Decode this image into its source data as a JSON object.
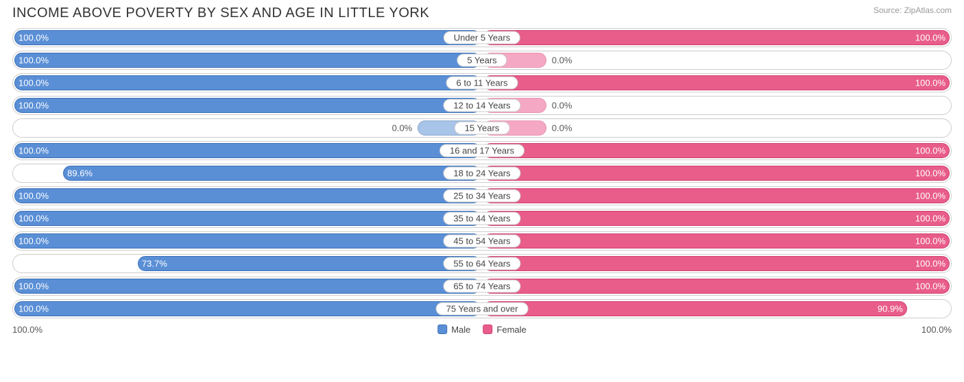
{
  "chart": {
    "type": "diverging-bar",
    "title": "INCOME ABOVE POVERTY BY SEX AND AGE IN LITTLE YORK",
    "source": "Source: ZipAtlas.com",
    "axis_left": "100.0%",
    "axis_right": "100.0%",
    "legend": {
      "male": "Male",
      "female": "Female"
    },
    "colors": {
      "male": "#5a8fd6",
      "male_light": "#a8c4e8",
      "male_border": "#3a6fb6",
      "female": "#e85d8a",
      "female_light": "#f5a8c4",
      "female_border": "#d04070",
      "row_border": "#cccccc",
      "background": "#ffffff",
      "text": "#444444",
      "title_color": "#333333"
    },
    "min_bar_pct": 14,
    "font": {
      "title_size": 20,
      "label_size": 13,
      "source_size": 12
    },
    "rows": [
      {
        "category": "Under 5 Years",
        "male": 100.0,
        "female": 100.0
      },
      {
        "category": "5 Years",
        "male": 100.0,
        "female": 0.0
      },
      {
        "category": "6 to 11 Years",
        "male": 100.0,
        "female": 100.0
      },
      {
        "category": "12 to 14 Years",
        "male": 100.0,
        "female": 0.0
      },
      {
        "category": "15 Years",
        "male": 0.0,
        "female": 0.0
      },
      {
        "category": "16 and 17 Years",
        "male": 100.0,
        "female": 100.0
      },
      {
        "category": "18 to 24 Years",
        "male": 89.6,
        "female": 100.0
      },
      {
        "category": "25 to 34 Years",
        "male": 100.0,
        "female": 100.0
      },
      {
        "category": "35 to 44 Years",
        "male": 100.0,
        "female": 100.0
      },
      {
        "category": "45 to 54 Years",
        "male": 100.0,
        "female": 100.0
      },
      {
        "category": "55 to 64 Years",
        "male": 73.7,
        "female": 100.0
      },
      {
        "category": "65 to 74 Years",
        "male": 100.0,
        "female": 100.0
      },
      {
        "category": "75 Years and over",
        "male": 100.0,
        "female": 90.9
      }
    ]
  }
}
